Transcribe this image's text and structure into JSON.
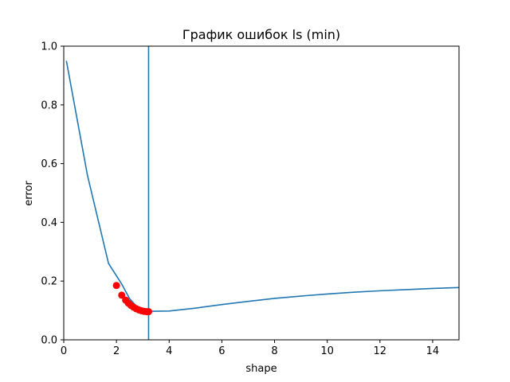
{
  "chart_data": {
    "type": "line",
    "title": "График ошибок ls (min)",
    "xlabel": "shape",
    "ylabel": "error",
    "xlim": [
      0,
      15
    ],
    "ylim": [
      0,
      1.0
    ],
    "xticks": [
      0,
      2,
      4,
      6,
      8,
      10,
      12,
      14
    ],
    "yticks": [
      0.0,
      0.2,
      0.4,
      0.6,
      0.8,
      1.0
    ],
    "xtick_labels": [
      "0",
      "2",
      "4",
      "6",
      "8",
      "10",
      "12",
      "14"
    ],
    "ytick_labels": [
      "0.0",
      "0.2",
      "0.4",
      "0.6",
      "0.8",
      "1.0"
    ],
    "grid": false,
    "series": [
      {
        "kind": "line",
        "color": "#1f77b4",
        "x": [
          0.1,
          0.9,
          1.7,
          2.2,
          2.5,
          2.8,
          3.2,
          4.0,
          5.0,
          6.0,
          7.0,
          8.0,
          9.0,
          10.0,
          11.0,
          12.0,
          13.0,
          14.0,
          15.0
        ],
        "y": [
          0.95,
          0.56,
          0.26,
          0.19,
          0.14,
          0.11,
          0.097,
          0.098,
          0.108,
          0.12,
          0.131,
          0.141,
          0.149,
          0.156,
          0.162,
          0.167,
          0.171,
          0.175,
          0.178
        ]
      },
      {
        "kind": "scatter",
        "color": "#ff0000",
        "x": [
          2.0,
          2.2,
          2.35,
          2.45,
          2.55,
          2.65,
          2.75,
          2.85,
          2.95,
          3.05,
          3.15,
          3.22
        ],
        "y": [
          0.185,
          0.152,
          0.135,
          0.125,
          0.117,
          0.111,
          0.106,
          0.102,
          0.099,
          0.097,
          0.096,
          0.096
        ]
      },
      {
        "kind": "vline",
        "color": "#1f77b4",
        "x": 3.22
      }
    ]
  }
}
